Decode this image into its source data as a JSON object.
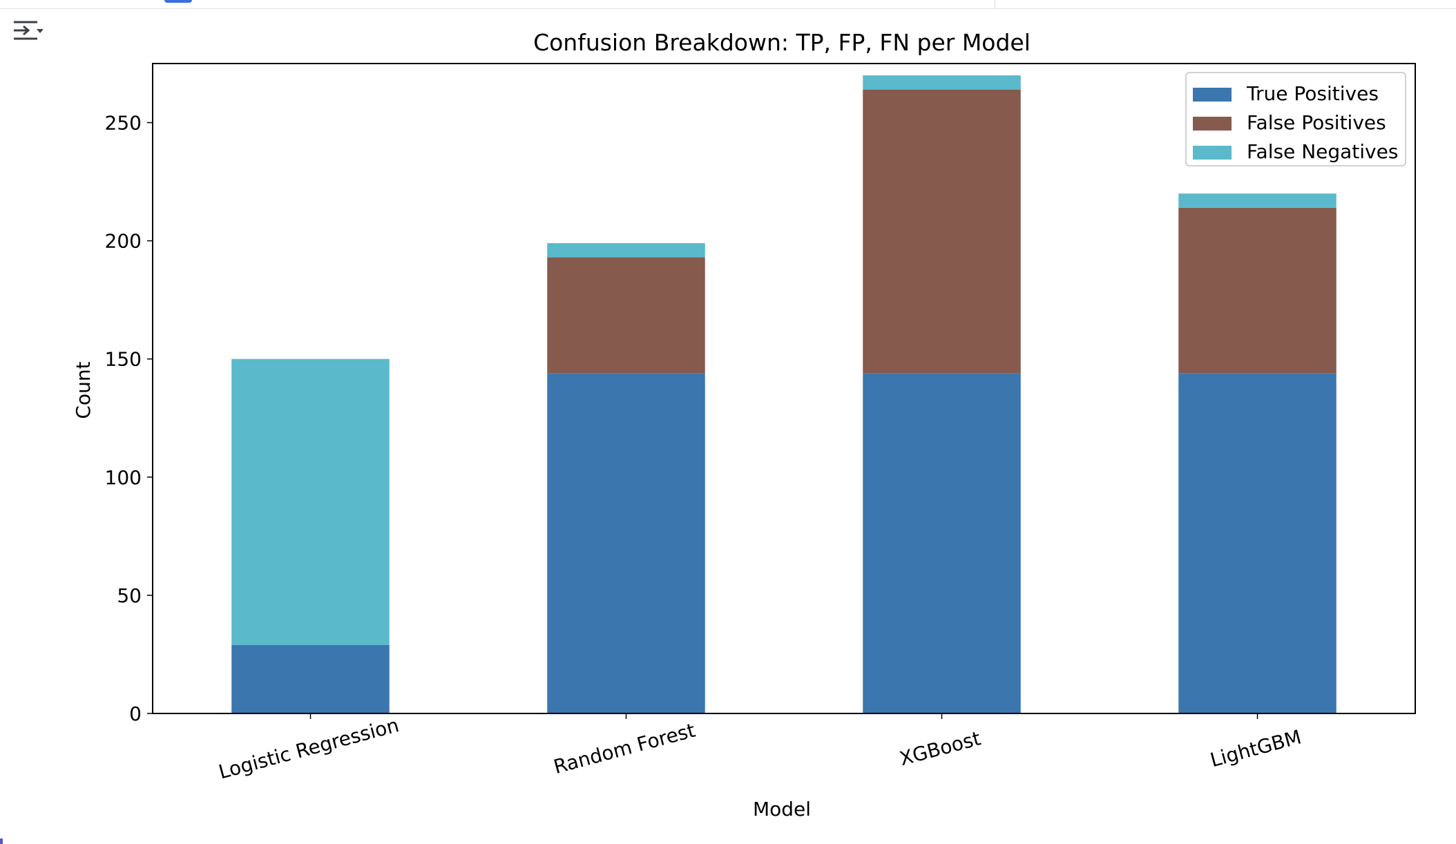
{
  "chart_data": {
    "type": "bar",
    "stacked": true,
    "title": "Confusion Breakdown: TP, FP, FN per Model",
    "xlabel": "Model",
    "ylabel": "Count",
    "categories": [
      "Logistic Regression",
      "Random Forest",
      "XGBoost",
      "LightGBM"
    ],
    "series": [
      {
        "name": "True Positives",
        "color": "#3b76ae",
        "values": [
          29,
          144,
          144,
          144
        ]
      },
      {
        "name": "False Positives",
        "color": "#875a4e",
        "values": [
          0,
          49,
          120,
          70
        ]
      },
      {
        "name": "False Negatives",
        "color": "#5ab9cb",
        "values": [
          121,
          6,
          6,
          6
        ]
      }
    ],
    "ylim": [
      0,
      275
    ],
    "yticks": [
      0,
      50,
      100,
      150,
      200,
      250
    ],
    "grid": false,
    "legend_position": "top-right"
  },
  "toolbar": {
    "toggle_icon": "output-collapse-icon"
  }
}
